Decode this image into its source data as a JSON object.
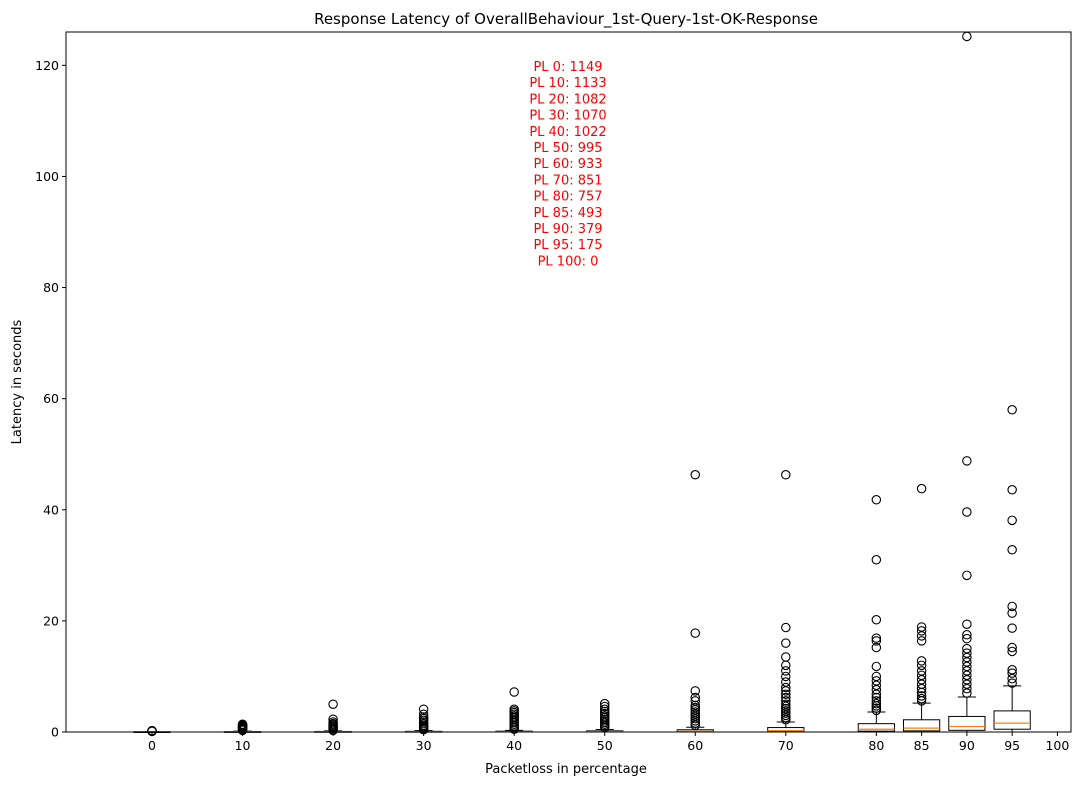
{
  "chart_data": {
    "type": "box",
    "title": "Response Latency of OverallBehaviour_1st-Query-1st-OK-Response",
    "xlabel": "Packetloss in percentage",
    "ylabel": "Latency in seconds",
    "ylim": [
      0,
      126
    ],
    "xlim": [
      -9.5,
      101.5
    ],
    "yticks": [
      0,
      20,
      40,
      60,
      80,
      100,
      120
    ],
    "xticks": [
      0,
      10,
      20,
      30,
      40,
      50,
      60,
      70,
      80,
      85,
      90,
      95,
      100
    ],
    "grid": false,
    "colors": {
      "box": "#000000",
      "median": "#ff7f0e",
      "annotation": "#ff0000"
    },
    "annotations": [
      "PL 0: 1149",
      "PL 10: 1133",
      "PL 20: 1082",
      "PL 30: 1070",
      "PL 40: 1022",
      "PL 50: 995",
      "PL 60: 933",
      "PL 70: 851",
      "PL 80: 757",
      "PL 85: 493",
      "PL 90: 379",
      "PL 95: 175",
      "PL 100: 0"
    ],
    "boxes": [
      {
        "x": 0,
        "q1": 0.02,
        "median": 0.04,
        "q3": 0.06,
        "whisker_low": 0,
        "whisker_high": 0.1,
        "outliers": [
          0.12,
          0.15,
          0.2,
          0.25
        ]
      },
      {
        "x": 10,
        "q1": 0.02,
        "median": 0.05,
        "q3": 0.08,
        "whisker_low": 0,
        "whisker_high": 0.15,
        "outliers": [
          0.3,
          0.4,
          0.5,
          0.6,
          0.7,
          0.8,
          0.9,
          1.0,
          1.1,
          1.2,
          1.3,
          1.4
        ]
      },
      {
        "x": 20,
        "q1": 0.02,
        "median": 0.05,
        "q3": 0.1,
        "whisker_low": 0,
        "whisker_high": 0.2,
        "outliers": [
          0.3,
          0.5,
          0.7,
          0.9,
          1.1,
          1.3,
          1.5,
          1.8,
          2.3,
          5.0
        ]
      },
      {
        "x": 30,
        "q1": 0.02,
        "median": 0.05,
        "q3": 0.12,
        "whisker_low": 0,
        "whisker_high": 0.25,
        "outliers": [
          0.4,
          0.6,
          0.8,
          1.0,
          1.2,
          1.5,
          1.8,
          2.1,
          2.4,
          2.7,
          3.2,
          4.1
        ]
      },
      {
        "x": 40,
        "q1": 0.03,
        "median": 0.06,
        "q3": 0.15,
        "whisker_low": 0,
        "whisker_high": 0.3,
        "outliers": [
          0.5,
          0.8,
          1.1,
          1.4,
          1.7,
          2.0,
          2.3,
          2.6,
          2.9,
          3.2,
          3.5,
          3.8,
          4.1,
          7.2
        ]
      },
      {
        "x": 50,
        "q1": 0.03,
        "median": 0.07,
        "q3": 0.2,
        "whisker_low": 0,
        "whisker_high": 0.45,
        "outliers": [
          0.8,
          1.1,
          1.4,
          1.7,
          2.0,
          2.3,
          2.6,
          2.9,
          3.3,
          3.7,
          4.1,
          4.6,
          5.1
        ]
      },
      {
        "x": 60,
        "q1": 0.05,
        "median": 0.12,
        "q3": 0.4,
        "whisker_low": 0,
        "whisker_high": 0.85,
        "outliers": [
          1.2,
          1.6,
          2.0,
          2.4,
          2.8,
          3.2,
          3.6,
          4.0,
          4.4,
          4.8,
          5.6,
          6.2,
          7.4,
          17.8,
          46.3
        ]
      },
      {
        "x": 70,
        "q1": 0.08,
        "median": 0.25,
        "q3": 0.8,
        "whisker_low": 0,
        "whisker_high": 1.8,
        "outliers": [
          2.2,
          2.6,
          3.0,
          3.4,
          3.8,
          4.2,
          4.6,
          5.0,
          5.6,
          6.2,
          6.8,
          7.4,
          8.0,
          9.0,
          10.0,
          11.0,
          12.0,
          13.5,
          16.0,
          18.8,
          46.3
        ]
      },
      {
        "x": 80,
        "q1": 0.15,
        "median": 0.5,
        "q3": 1.5,
        "whisker_low": 0,
        "whisker_high": 3.6,
        "outliers": [
          3.9,
          4.3,
          4.7,
          5.1,
          5.6,
          6.2,
          6.8,
          7.6,
          8.4,
          9.2,
          10.0,
          11.8,
          15.2,
          16.4,
          16.9,
          20.2,
          31.0,
          41.8
        ]
      },
      {
        "x": 85,
        "q1": 0.2,
        "median": 0.7,
        "q3": 2.2,
        "whisker_low": 0,
        "whisker_high": 5.2,
        "outliers": [
          5.6,
          6.0,
          6.5,
          7.1,
          7.8,
          8.6,
          9.4,
          10.2,
          11.0,
          12.0,
          12.8,
          16.4,
          17.3,
          18.2,
          18.9,
          43.8
        ]
      },
      {
        "x": 90,
        "q1": 0.3,
        "median": 1.0,
        "q3": 2.8,
        "whisker_low": 0,
        "whisker_high": 6.3,
        "outliers": [
          7.0,
          7.8,
          8.6,
          9.4,
          10.2,
          11.0,
          11.8,
          12.6,
          13.4,
          14.2,
          15.0,
          16.8,
          17.5,
          19.4,
          28.2,
          39.6,
          48.8,
          125.2
        ]
      },
      {
        "x": 95,
        "q1": 0.5,
        "median": 1.6,
        "q3": 3.8,
        "whisker_low": 0,
        "whisker_high": 8.3,
        "outliers": [
          8.8,
          9.6,
          10.6,
          11.2,
          14.5,
          15.2,
          18.7,
          21.4,
          22.6,
          32.8,
          38.1,
          43.6,
          58.0
        ]
      }
    ]
  }
}
